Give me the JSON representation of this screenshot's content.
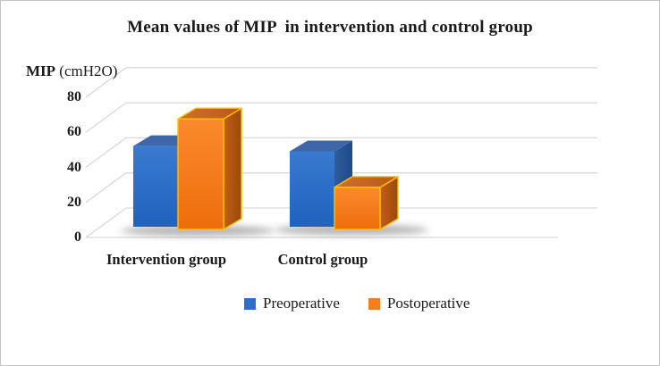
{
  "title": "Mean values of MIP  in intervention and control group",
  "y_axis": {
    "label_bold": "MIP",
    "label_unit": " (cmH2O)"
  },
  "legend": {
    "items": [
      {
        "label": "Preoperative",
        "color": "#2E70C6"
      },
      {
        "label": "Postoperative",
        "color": "#F87C1A"
      }
    ]
  },
  "chart_data": {
    "type": "bar",
    "projection": "3d",
    "title": "Mean values of MIP  in intervention and control group",
    "ylabel": "MIP (cmH2O)",
    "categories": [
      "Intervention group",
      "Control group"
    ],
    "series": [
      {
        "name": "Preoperative",
        "values": [
          46,
          43
        ],
        "color": "#2E70C6"
      },
      {
        "name": "Postoperative",
        "values": [
          63,
          24
        ],
        "color": "#F87C1A"
      }
    ],
    "yticks": [
      0,
      20,
      40,
      60,
      80
    ],
    "ylim": [
      0,
      80
    ],
    "grid": true,
    "legend_position": "bottom"
  },
  "colors": {
    "blue_front_light": "#3A7AD0",
    "blue_front_dark": "#1E63BE",
    "blue_top": "#3E66A8",
    "blue_side_light": "#2E5C9E",
    "blue_side_dark": "#1F4A86",
    "orange_front_light": "#FA8A2B",
    "orange_front_dark": "#EE6D0C",
    "orange_top_light": "#D07029",
    "orange_top_dark": "#B85A18",
    "orange_side_light": "#C25F15",
    "orange_side_dark": "#9C480E",
    "orange_outline": "#FFC000",
    "gridline": "#D9D9D9",
    "text": "#1A1A1A",
    "frame_border": "#C4C4C4"
  }
}
